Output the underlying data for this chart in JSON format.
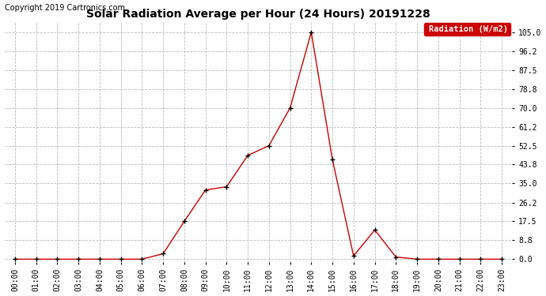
{
  "title": "Solar Radiation Average per Hour (24 Hours) 20191228",
  "copyright": "Copyright 2019 Cartronics.com",
  "legend_label": "Radiation (W/m2)",
  "hours": [
    "00:00",
    "01:00",
    "02:00",
    "03:00",
    "04:00",
    "05:00",
    "06:00",
    "07:00",
    "08:00",
    "09:00",
    "10:00",
    "11:00",
    "12:00",
    "13:00",
    "14:00",
    "15:00",
    "16:00",
    "17:00",
    "18:00",
    "19:00",
    "20:00",
    "21:00",
    "22:00",
    "23:00"
  ],
  "values": [
    0.0,
    0.0,
    0.0,
    0.0,
    0.0,
    0.0,
    0.0,
    2.5,
    17.5,
    32.0,
    33.5,
    48.0,
    52.5,
    70.0,
    105.0,
    46.0,
    1.5,
    13.5,
    1.0,
    0.0,
    0.0,
    0.0,
    0.0,
    0.0
  ],
  "yticks": [
    0.0,
    8.8,
    17.5,
    26.2,
    35.0,
    43.8,
    52.5,
    61.2,
    70.0,
    78.8,
    87.5,
    96.2,
    105.0
  ],
  "ytick_labels": [
    "0.0",
    "8.8",
    "17.5",
    "26.2",
    "35.0",
    "43.8",
    "52.5",
    "61.2",
    "70.0",
    "78.8",
    "87.5",
    "96.2",
    "105.0"
  ],
  "line_color": "#cc0000",
  "marker_color": "#000000",
  "background_color": "#ffffff",
  "grid_color": "#bbbbbb",
  "ylim": [
    -1.5,
    110
  ],
  "xlim": [
    -0.5,
    23.5
  ],
  "title_fontsize": 10,
  "copyright_fontsize": 7,
  "tick_fontsize": 7,
  "legend_bg": "#cc0000",
  "legend_text_color": "#ffffff",
  "legend_fontsize": 7.5
}
